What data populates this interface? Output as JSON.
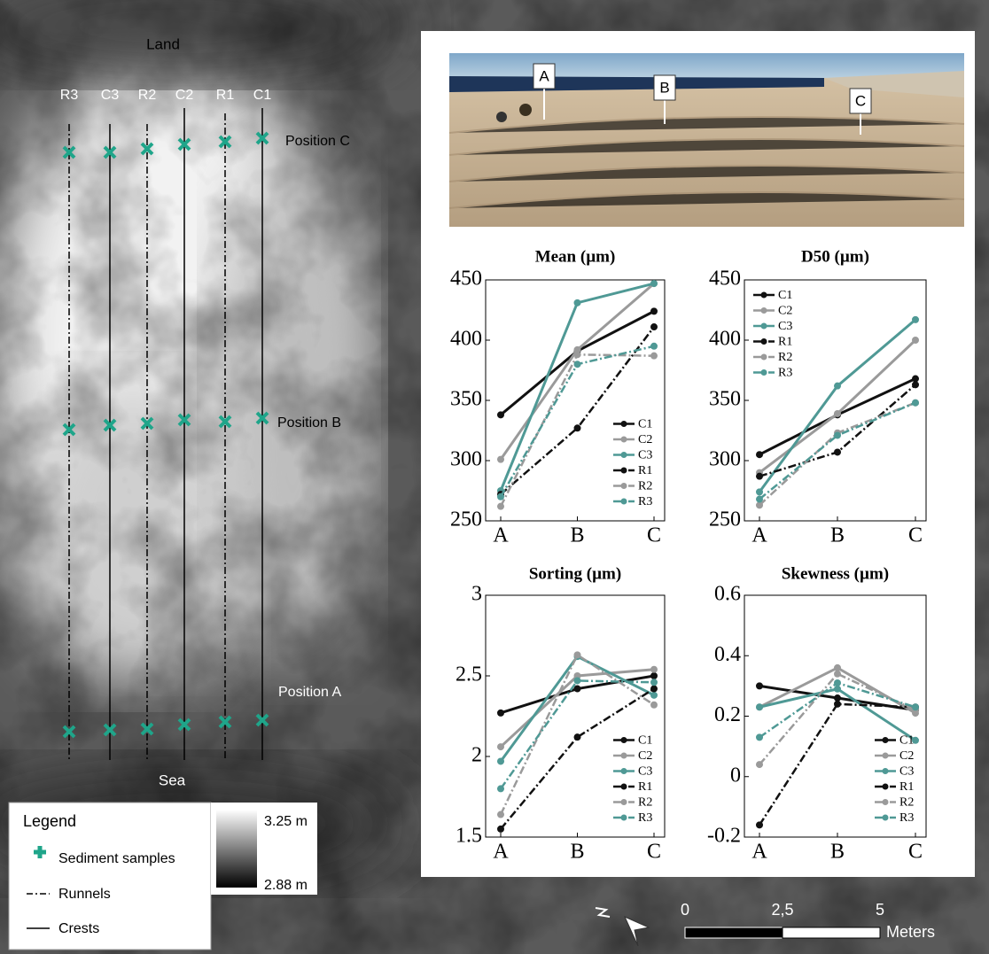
{
  "map": {
    "top_label": "Land",
    "bottom_label": "Sea",
    "transects": [
      "R3",
      "C3",
      "R2",
      "C2",
      "R1",
      "C1"
    ],
    "positions": [
      "Position C",
      "Position B",
      "Position A"
    ],
    "legend": {
      "title": "Legend",
      "items": [
        "Sediment samples",
        "Runnels",
        "Crests"
      ],
      "elevation_max": "3.25 m",
      "elevation_min": "2.88 m"
    },
    "scale": {
      "labels": [
        "0",
        "2,5",
        "5"
      ],
      "unit": "Meters"
    },
    "photo_labels": [
      "A",
      "B",
      "C"
    ]
  },
  "chart_data": [
    {
      "type": "line",
      "title": "Mean (µm)",
      "categories": [
        "A",
        "B",
        "C"
      ],
      "ylim": [
        250,
        450
      ],
      "yticks": [
        250,
        300,
        350,
        400,
        450
      ],
      "legend": "lower right",
      "series": [
        {
          "name": "C1",
          "color": "#111111",
          "dash": "solid",
          "values": [
            338,
            391,
            424
          ]
        },
        {
          "name": "C2",
          "color": "#9a9a9a",
          "dash": "solid",
          "values": [
            301,
            392,
            447
          ]
        },
        {
          "name": "C3",
          "color": "#4f9995",
          "dash": "solid",
          "values": [
            275,
            431,
            447
          ]
        },
        {
          "name": "R1",
          "color": "#111111",
          "dash": "dashdot",
          "values": [
            272,
            327,
            411
          ]
        },
        {
          "name": "R2",
          "color": "#9a9a9a",
          "dash": "dashdot",
          "values": [
            262,
            388,
            387
          ]
        },
        {
          "name": "R3",
          "color": "#4f9995",
          "dash": "dashdot",
          "values": [
            270,
            380,
            395
          ]
        }
      ]
    },
    {
      "type": "line",
      "title": "D50 (µm)",
      "categories": [
        "A",
        "B",
        "C"
      ],
      "ylim": [
        250,
        450
      ],
      "yticks": [
        250,
        300,
        350,
        400,
        450
      ],
      "legend": "upper left",
      "series": [
        {
          "name": "C1",
          "color": "#111111",
          "dash": "solid",
          "values": [
            305,
            338,
            368
          ]
        },
        {
          "name": "C2",
          "color": "#9a9a9a",
          "dash": "solid",
          "values": [
            290,
            339,
            400
          ]
        },
        {
          "name": "C3",
          "color": "#4f9995",
          "dash": "solid",
          "values": [
            274,
            362,
            417
          ]
        },
        {
          "name": "R1",
          "color": "#111111",
          "dash": "dashdot",
          "values": [
            287,
            307,
            363
          ]
        },
        {
          "name": "R2",
          "color": "#9a9a9a",
          "dash": "dashdot",
          "values": [
            263,
            323,
            348
          ]
        },
        {
          "name": "R3",
          "color": "#4f9995",
          "dash": "dashdot",
          "values": [
            268,
            321,
            348
          ]
        }
      ]
    },
    {
      "type": "line",
      "title": "Sorting (µm)",
      "categories": [
        "A",
        "B",
        "C"
      ],
      "ylim": [
        1.5,
        3
      ],
      "yticks": [
        1.5,
        2,
        2.5,
        3
      ],
      "legend": "lower right",
      "series": [
        {
          "name": "C1",
          "color": "#111111",
          "dash": "solid",
          "values": [
            2.27,
            2.42,
            2.5
          ]
        },
        {
          "name": "C2",
          "color": "#9a9a9a",
          "dash": "solid",
          "values": [
            2.06,
            2.5,
            2.54
          ]
        },
        {
          "name": "C3",
          "color": "#4f9995",
          "dash": "solid",
          "values": [
            1.97,
            2.62,
            2.38
          ]
        },
        {
          "name": "R1",
          "color": "#111111",
          "dash": "dashdot",
          "values": [
            1.55,
            2.12,
            2.42
          ]
        },
        {
          "name": "R2",
          "color": "#9a9a9a",
          "dash": "dashdot",
          "values": [
            1.64,
            2.63,
            2.32
          ]
        },
        {
          "name": "R3",
          "color": "#4f9995",
          "dash": "dashdot",
          "values": [
            1.8,
            2.47,
            2.46
          ]
        }
      ]
    },
    {
      "type": "line",
      "title": "Skewness (µm)",
      "categories": [
        "A",
        "B",
        "C"
      ],
      "ylim": [
        -0.2,
        0.6
      ],
      "yticks": [
        -0.2,
        0,
        0.2,
        0.4,
        0.6
      ],
      "legend": "lower right",
      "series": [
        {
          "name": "C1",
          "color": "#111111",
          "dash": "solid",
          "values": [
            0.3,
            0.26,
            0.22
          ]
        },
        {
          "name": "C2",
          "color": "#9a9a9a",
          "dash": "solid",
          "values": [
            0.23,
            0.36,
            0.21
          ]
        },
        {
          "name": "C3",
          "color": "#4f9995",
          "dash": "solid",
          "values": [
            0.23,
            0.29,
            0.12
          ]
        },
        {
          "name": "R1",
          "color": "#111111",
          "dash": "dashdot",
          "values": [
            -0.16,
            0.24,
            0.23
          ]
        },
        {
          "name": "R2",
          "color": "#9a9a9a",
          "dash": "dashdot",
          "values": [
            0.04,
            0.34,
            0.22
          ]
        },
        {
          "name": "R3",
          "color": "#4f9995",
          "dash": "dashdot",
          "values": [
            0.13,
            0.31,
            0.23
          ]
        }
      ]
    }
  ]
}
